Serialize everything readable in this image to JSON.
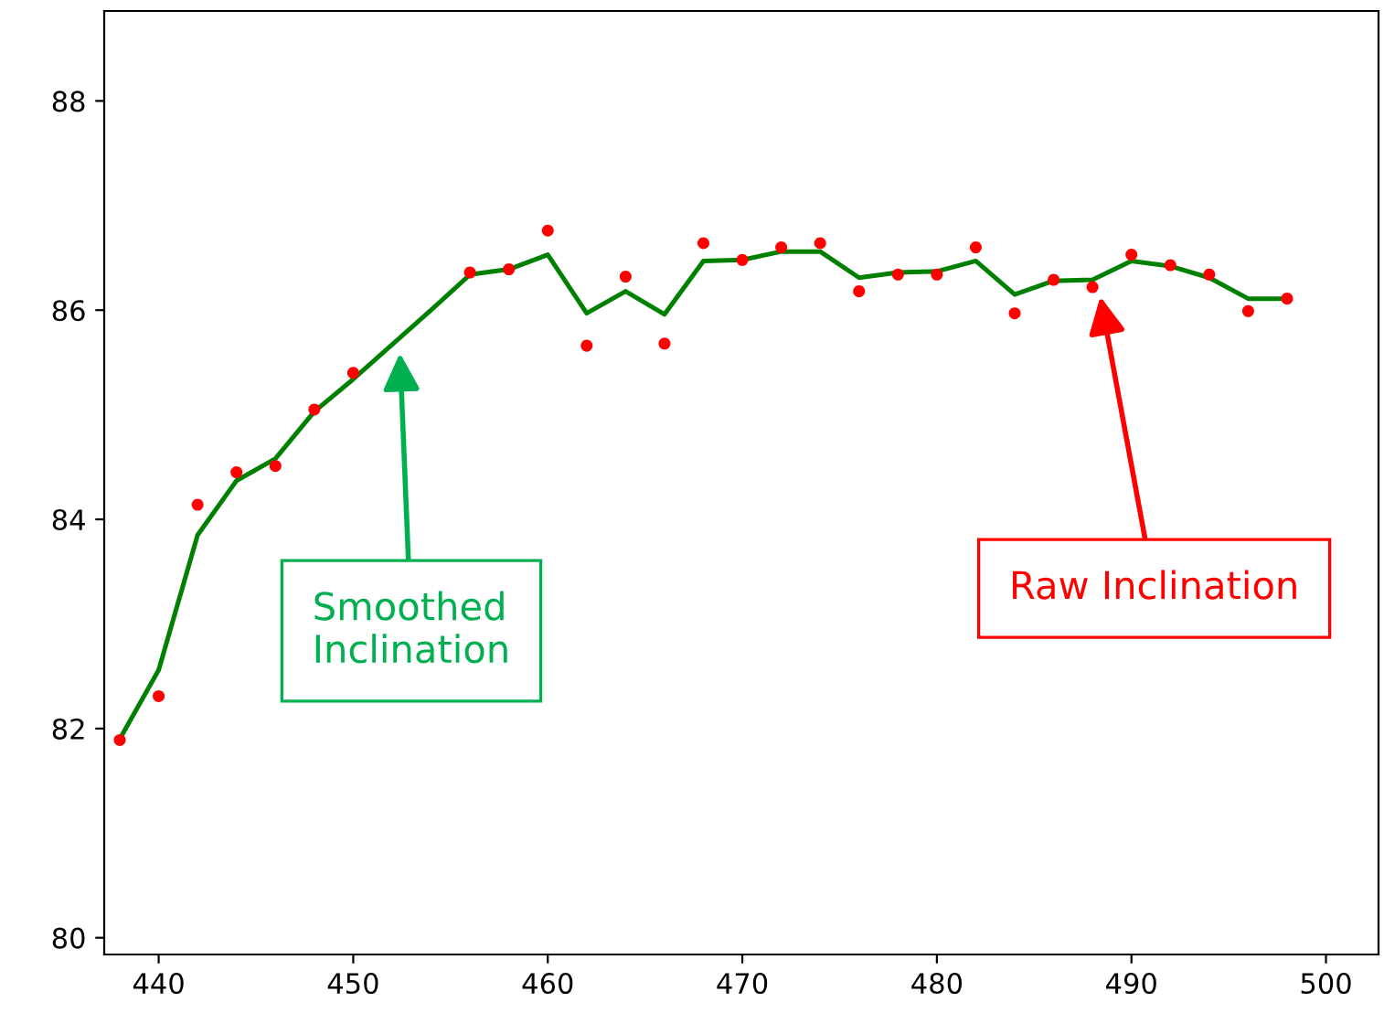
{
  "chart_data": {
    "type": "line",
    "xlim": [
      437.2,
      502.7
    ],
    "xticks": [
      440,
      450,
      460,
      470,
      480,
      490,
      500
    ],
    "ylim": [
      79.84,
      88.86
    ],
    "yticks": [
      80,
      82,
      84,
      86,
      88
    ],
    "grid": false,
    "series": [
      {
        "color": "#008000",
        "marker": "none",
        "line_style": "solid",
        "x": [
          438,
          440,
          442,
          444,
          446,
          448,
          450,
          452,
          454,
          456,
          458,
          460,
          462,
          464,
          466,
          468,
          470,
          472,
          474,
          476,
          478,
          480,
          482,
          484,
          486,
          488,
          490,
          492,
          494,
          496,
          498
        ],
        "values": [
          81.9,
          82.56,
          83.85,
          84.37,
          84.58,
          85.03,
          85.34,
          85.67,
          86.0,
          86.34,
          86.39,
          86.53,
          85.97,
          86.18,
          85.96,
          86.47,
          86.48,
          86.56,
          86.56,
          86.31,
          86.36,
          86.37,
          86.47,
          86.15,
          86.28,
          86.29,
          86.47,
          86.42,
          86.31,
          86.11,
          86.11
        ]
      },
      {
        "type": "scatter",
        "color": "#ff0000",
        "marker": "circle",
        "x": [
          438,
          440,
          442,
          444,
          446,
          448,
          450,
          456,
          458,
          460,
          462,
          464,
          466,
          468,
          470,
          472,
          474,
          476,
          478,
          480,
          482,
          484,
          486,
          488,
          490,
          492,
          494,
          496,
          498
        ],
        "values": [
          81.89,
          82.31,
          84.14,
          84.45,
          84.51,
          85.05,
          85.4,
          86.36,
          86.39,
          86.76,
          85.66,
          86.32,
          85.68,
          86.64,
          86.48,
          86.6,
          86.64,
          86.18,
          86.34,
          86.34,
          86.6,
          85.97,
          86.29,
          86.22,
          86.53,
          86.43,
          86.34,
          85.99,
          86.11
        ]
      }
    ],
    "annotations": [
      {
        "text": "Smoothed\nInclination",
        "x": 452.4,
        "y": 85.59
      },
      {
        "text": "Raw Inclination",
        "x": 488.4,
        "y": 86.13
      }
    ]
  }
}
